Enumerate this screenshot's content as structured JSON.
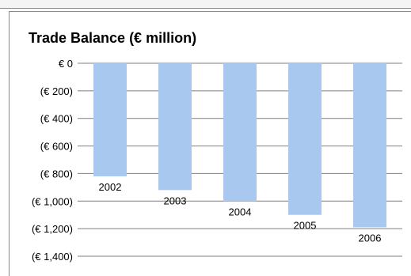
{
  "chart_data": {
    "type": "bar",
    "title": "Trade Balance (€ million)",
    "xlabel": "",
    "ylabel": "",
    "categories": [
      "2002",
      "2003",
      "2004",
      "2005",
      "2006"
    ],
    "values": [
      -820,
      -920,
      -1000,
      -1100,
      -1190
    ],
    "ylim": [
      -1400,
      0
    ],
    "y_ticks": [
      0,
      -200,
      -400,
      -600,
      -800,
      -1000,
      -1200,
      -1400
    ],
    "y_tick_labels": [
      "€ 0",
      "(€ 200)",
      "(€ 400)",
      "(€ 600)",
      "(€ 800)",
      "(€ 1,000)",
      "(€ 1,200)",
      "(€ 1,400)"
    ],
    "grid": true,
    "legend": "none",
    "bar_color": "#a9c8ef",
    "grid_color": "#7f7f7f"
  }
}
